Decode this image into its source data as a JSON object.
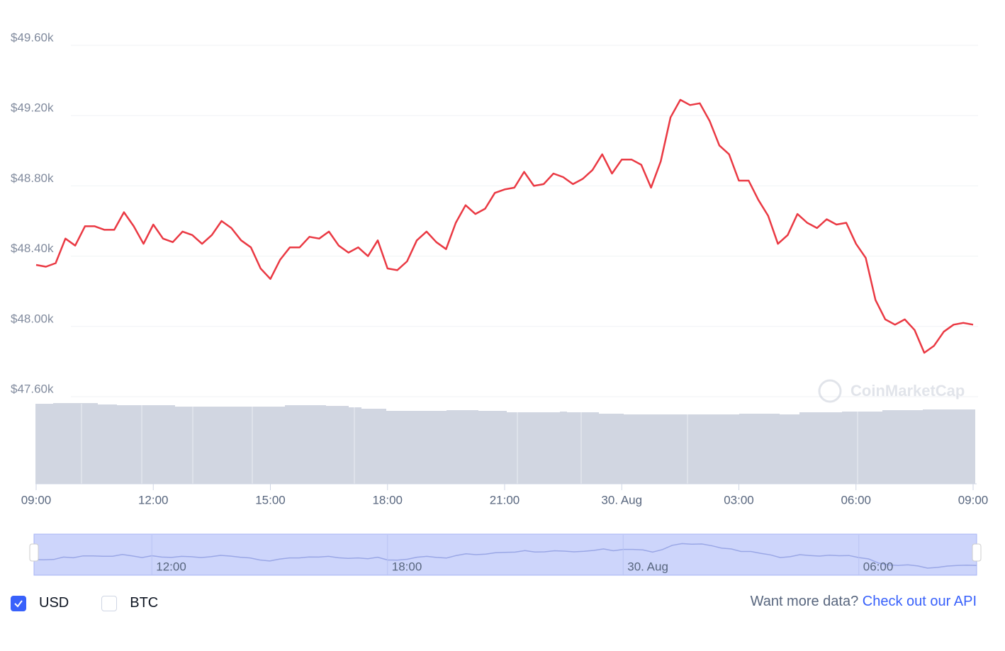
{
  "chart_data": {
    "type": "line",
    "categories": [
      "09:00",
      "09:15",
      "09:30",
      "09:45",
      "10:00",
      "10:15",
      "10:30",
      "10:45",
      "11:00",
      "11:15",
      "11:30",
      "11:45",
      "12:00",
      "12:15",
      "12:30",
      "12:45",
      "13:00",
      "13:15",
      "13:30",
      "13:45",
      "14:00",
      "14:15",
      "14:30",
      "14:45",
      "15:00",
      "15:15",
      "15:30",
      "15:45",
      "16:00",
      "16:15",
      "16:30",
      "16:45",
      "17:00",
      "17:15",
      "17:30",
      "17:45",
      "18:00",
      "18:15",
      "18:30",
      "18:45",
      "19:00",
      "19:15",
      "19:30",
      "19:45",
      "20:00",
      "20:15",
      "20:30",
      "20:45",
      "21:00",
      "21:15",
      "21:30",
      "21:45",
      "22:00",
      "22:15",
      "22:30",
      "22:45",
      "23:00",
      "23:15",
      "23:30",
      "23:45",
      "00:00",
      "00:15",
      "00:30",
      "00:45",
      "01:00",
      "01:15",
      "01:30",
      "01:45",
      "02:00",
      "02:15",
      "02:30",
      "02:45",
      "03:00",
      "03:15",
      "03:30",
      "03:45",
      "04:00",
      "04:15",
      "04:30",
      "04:45",
      "05:00",
      "05:15",
      "05:30",
      "05:45",
      "06:00",
      "06:15",
      "06:30",
      "06:45",
      "07:00",
      "07:15",
      "07:30",
      "07:45",
      "08:00",
      "08:15",
      "08:30",
      "08:45",
      "09:00"
    ],
    "values": [
      48350,
      48340,
      48360,
      48500,
      48460,
      48570,
      48570,
      48550,
      48550,
      48650,
      48570,
      48470,
      48580,
      48500,
      48480,
      48540,
      48520,
      48470,
      48520,
      48600,
      48560,
      48490,
      48450,
      48330,
      48270,
      48380,
      48450,
      48450,
      48510,
      48500,
      48540,
      48460,
      48420,
      48450,
      48400,
      48490,
      48330,
      48320,
      48370,
      48490,
      48540,
      48480,
      48440,
      48590,
      48690,
      48640,
      48670,
      48760,
      48780,
      48790,
      48880,
      48800,
      48810,
      48870,
      48850,
      48810,
      48840,
      48890,
      48980,
      48870,
      48950,
      48950,
      48920,
      48790,
      48940,
      49190,
      49290,
      49260,
      49270,
      49170,
      49030,
      48980,
      48830,
      48830,
      48720,
      48630,
      48470,
      48520,
      48640,
      48590,
      48560,
      48610,
      48580,
      48590,
      48470,
      48390,
      48150,
      48040,
      48010,
      48040,
      47980,
      47850,
      47890,
      47970,
      48010,
      48020,
      48010
    ],
    "color": "#ea3943",
    "ylim": [
      47600,
      49600
    ],
    "yticks": [
      {
        "value": 47600,
        "label": "$47.60k"
      },
      {
        "value": 48000,
        "label": "$48.00k"
      },
      {
        "value": 48400,
        "label": "$48.40k"
      },
      {
        "value": 48800,
        "label": "$48.80k"
      },
      {
        "value": 49200,
        "label": "$49.20k"
      },
      {
        "value": 49600,
        "label": "$49.60k"
      }
    ],
    "xticks": [
      "09:00",
      "12:00",
      "15:00",
      "18:00",
      "21:00",
      "30. Aug",
      "03:00",
      "06:00",
      "09:00"
    ],
    "grid": true,
    "watermark": "CoinMarketCap"
  },
  "controls": {
    "currencies": [
      {
        "label": "USD",
        "checked": true
      },
      {
        "label": "BTC",
        "checked": false
      }
    ],
    "api_prompt": "Want more data?",
    "api_link": "Check out our API"
  }
}
